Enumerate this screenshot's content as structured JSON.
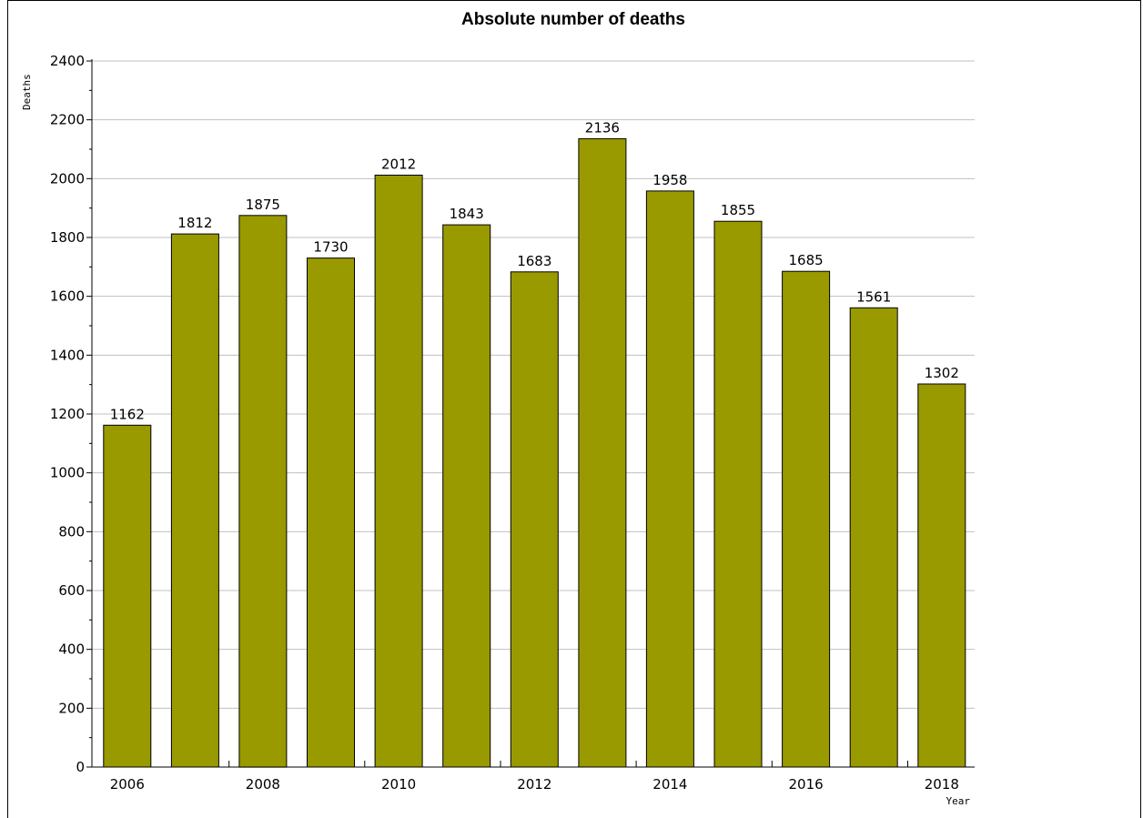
{
  "chart_data": {
    "type": "bar",
    "title": "Absolute number of deaths",
    "xlabel": "Year",
    "ylabel": "Deaths",
    "categories": [
      "2006",
      "2007",
      "2008",
      "2009",
      "2010",
      "2011",
      "2012",
      "2013",
      "2014",
      "2015",
      "2016",
      "2017",
      "2018"
    ],
    "x_tick_labels": [
      "2006",
      "2008",
      "2010",
      "2012",
      "2014",
      "2016",
      "2018"
    ],
    "values": [
      1162,
      1812,
      1875,
      1730,
      2012,
      1843,
      1683,
      2136,
      1958,
      1855,
      1685,
      1561,
      1302
    ],
    "ylim": [
      0,
      2400
    ],
    "y_ticks": [
      0,
      200,
      400,
      600,
      800,
      1000,
      1200,
      1400,
      1600,
      1800,
      2000,
      2200,
      2400
    ],
    "grid": true,
    "data_labels": true,
    "bar_color": "#999900",
    "bar_edge_color": "#000000",
    "grid_color": "#c0c0c0"
  }
}
